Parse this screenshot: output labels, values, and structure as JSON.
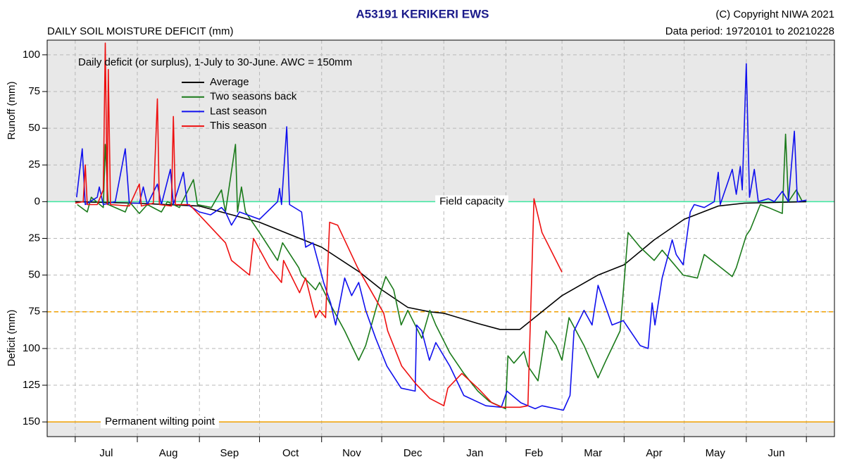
{
  "chart_data": {
    "type": "line",
    "title": "A53191  KERIKERI EWS",
    "copyright": "(C) Copyright NIWA  2021",
    "data_period": "Data period:  19720101  to  20210228",
    "subtitle": "DAILY SOIL MOISTURE DEFICIT (mm)",
    "annotation": "Daily deficit (or surplus), 1-July to 30-June.  AWC = 150mm",
    "y_label_top": "Runoff (mm)",
    "y_label_bottom": "Deficit (mm)",
    "months": [
      "Jul",
      "Aug",
      "Sep",
      "Oct",
      "Nov",
      "Dec",
      "Jan",
      "Feb",
      "Mar",
      "Apr",
      "May",
      "Jun"
    ],
    "xticks": [
      0,
      31,
      62,
      92,
      123,
      153,
      184,
      215,
      243,
      274,
      304,
      335,
      365
    ],
    "xlim": [
      -14,
      379
    ],
    "ylim": [
      -160,
      110
    ],
    "yticks": [
      100,
      75,
      50,
      25,
      0,
      {
        "value": -25,
        "label": "25"
      },
      {
        "value": -50,
        "label": "50"
      },
      {
        "value": -75,
        "label": "75"
      },
      {
        "value": -100,
        "label": "100"
      },
      {
        "value": -125,
        "label": "125"
      },
      {
        "value": -150,
        "label": "150"
      }
    ],
    "grid": true,
    "reference_lines": [
      {
        "value": 0,
        "label": "Field capacity",
        "color": "#3ee8a0",
        "style": "solid"
      },
      {
        "value": -75,
        "color": "#f0a000",
        "style": "dashed"
      },
      {
        "value": -150,
        "label": "Permanent wilting point",
        "color": "#f0a000",
        "style": "solid"
      }
    ],
    "series": [
      {
        "name": "Average",
        "color": "#000000",
        "x": [
          0,
          30,
          62,
          92,
          123,
          142,
          153,
          166,
          177,
          184,
          201,
          212,
          222,
          243,
          261,
          274,
          289,
          304,
          321,
          334,
          365
        ],
        "values": [
          0,
          -1,
          -3,
          -14,
          -31,
          -48,
          -60,
          -72,
          -75,
          -76,
          -83,
          -87,
          -87,
          -64,
          -50,
          -43,
          -26,
          -12,
          -3,
          -1,
          0
        ]
      },
      {
        "name": "Two seasons back",
        "color": "#1a7a1a",
        "x": [
          1,
          6,
          8,
          14,
          15,
          16.5,
          25,
          27,
          32,
          36,
          43,
          46,
          52,
          59,
          61,
          68,
          73,
          75,
          80,
          81,
          83,
          85,
          92,
          101,
          103.5,
          111.6,
          113,
          120,
          122,
          127,
          134.5,
          141.5,
          145,
          152,
          155,
          159,
          162.7,
          166,
          173,
          177,
          180,
          187,
          194,
          201,
          206.7,
          214.8,
          216,
          219,
          224,
          226,
          231,
          235,
          240,
          243,
          246.5,
          254,
          261,
          265,
          272,
          276,
          282,
          289,
          293,
          303.5,
          310.6,
          314,
          328,
          330,
          335,
          337,
          342,
          346,
          353,
          354.6,
          356,
          360,
          363
        ],
        "values": [
          -2,
          -7,
          3,
          -4,
          39,
          -2,
          -7,
          0,
          -8,
          -2,
          -7,
          0,
          -4,
          15,
          -2,
          -4,
          8,
          -7,
          39,
          -7,
          10,
          -7,
          -21,
          -40,
          -28,
          -45,
          -50,
          -60,
          -55,
          -69,
          -88,
          -108,
          -98,
          -64,
          -51,
          -60,
          -84,
          -74,
          -93,
          -74,
          -84,
          -103,
          -117,
          -129,
          -136,
          -141,
          -105,
          -110,
          -102,
          -112,
          -122,
          -88,
          -98,
          -108,
          -79,
          -98,
          -120,
          -108,
          -88,
          -21,
          -31,
          -40,
          -33,
          -50,
          -52,
          -36,
          -51,
          -45,
          -23,
          -19,
          -2,
          -4,
          -8,
          46,
          0,
          8,
          0
        ]
      },
      {
        "name": "Last season",
        "color": "#1010ee",
        "x": [
          0.7,
          3.5,
          5,
          11,
          12,
          14,
          20,
          25,
          27,
          32,
          34,
          36,
          41,
          43,
          47.5,
          49,
          54,
          56,
          62,
          67.6,
          73,
          75,
          78,
          82,
          92,
          101,
          102,
          103,
          105.6,
          107,
          113,
          115,
          118.7,
          124,
          127.5,
          130,
          134.5,
          138,
          141.5,
          145,
          150,
          155.6,
          162.7,
          169.7,
          170.4,
          173,
          176.8,
          180,
          187,
          194,
          205,
          212.7,
          215.5,
          222.5,
          229.6,
          233,
          243.7,
          247,
          249,
          254,
          258,
          261,
          268,
          273.6,
          282,
          286,
          288,
          289.4,
          293,
          298,
          300,
          303.5,
          307,
          309,
          314,
          319,
          321,
          322,
          328,
          330,
          332,
          333,
          335,
          336.6,
          339,
          341,
          346,
          349,
          353,
          356,
          359,
          360.5,
          365
        ],
        "values": [
          3,
          36,
          -2,
          3,
          10,
          -2,
          0,
          36,
          -1,
          -1,
          10,
          -2,
          12,
          -2,
          22,
          -2,
          20,
          -2,
          -7,
          -9,
          -4,
          -7,
          -16,
          -7,
          -12,
          0,
          9,
          -2,
          51,
          -2,
          -7,
          -31,
          -28,
          -55,
          -69,
          -84,
          -52,
          -64,
          -55,
          -74,
          -93,
          -112,
          -127,
          -129,
          -84,
          -88,
          -108,
          -96,
          -112,
          -132,
          -139,
          -140,
          -129,
          -137,
          -141,
          -139,
          -142,
          -132,
          -88,
          -74,
          -84,
          -57,
          -84,
          -81,
          -98,
          -100,
          -69,
          -84,
          -52,
          -26,
          -36,
          -43,
          -7,
          -2,
          -4,
          0,
          20,
          -2,
          22,
          5,
          24,
          8,
          94,
          3,
          22,
          0,
          2,
          0,
          7,
          0,
          48,
          0,
          1
        ]
      },
      {
        "name": "This season",
        "color": "#ee1010",
        "x": [
          0,
          4,
          5,
          6,
          11,
          14,
          15,
          16,
          16.5,
          17.6,
          27,
          32,
          33,
          39,
          41,
          42,
          48,
          49,
          50,
          57,
          64,
          75,
          78,
          87,
          89,
          97,
          103,
          104,
          112,
          115,
          120,
          122,
          125,
          127,
          131,
          141,
          149,
          154,
          156,
          163,
          170,
          177,
          184,
          186,
          193,
          201,
          208,
          213,
          222,
          226,
          229,
          233,
          243
        ],
        "values": [
          -1,
          0,
          25,
          -2,
          -2,
          8,
          108,
          -2,
          90,
          -2,
          -3,
          12,
          -3,
          -1,
          70,
          -2,
          -3,
          58,
          -2,
          -2,
          -12,
          -28,
          -40,
          -50,
          -25,
          -45,
          -55,
          -40,
          -62,
          -52,
          -79,
          -74,
          -79,
          -14,
          -16,
          -45,
          -64,
          -76,
          -88,
          -112,
          -124,
          -134,
          -139,
          -127,
          -117,
          -127,
          -137,
          -140,
          -140,
          -139,
          2,
          -21,
          -48
        ]
      }
    ]
  }
}
